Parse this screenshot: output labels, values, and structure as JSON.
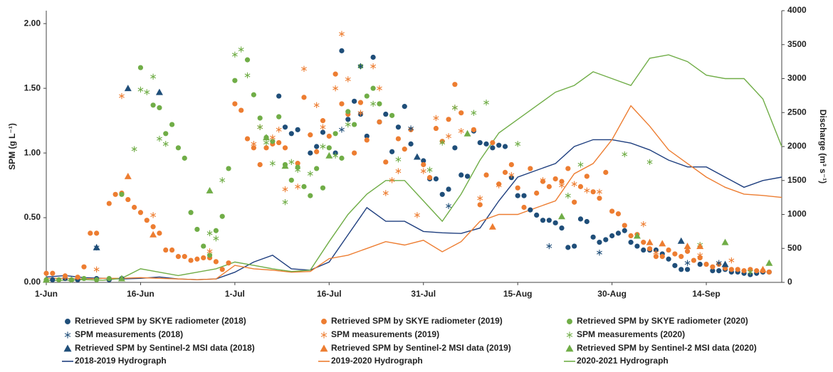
{
  "chart_data": {
    "type": "scatter",
    "ylabel": "SPM (g L⁻¹)",
    "y2label": "Discharge (m³ s⁻¹)",
    "xlim": [
      0,
      117
    ],
    "xticks": [
      {
        "value": 0,
        "label": "1-Jun"
      },
      {
        "value": 15,
        "label": "16-Jun"
      },
      {
        "value": 30,
        "label": "1-Jul"
      },
      {
        "value": 45,
        "label": "16-Jul"
      },
      {
        "value": 60,
        "label": "31-Jul"
      },
      {
        "value": 75,
        "label": "15-Aug"
      },
      {
        "value": 90,
        "label": "30-Aug"
      },
      {
        "value": 105,
        "label": "14-Sep"
      }
    ],
    "ylim": [
      0,
      2.1
    ],
    "yticks": [
      {
        "value": 0,
        "label": "0.00"
      },
      {
        "value": 0.5,
        "label": "0.50"
      },
      {
        "value": 1,
        "label": "1.00"
      },
      {
        "value": 1.5,
        "label": "1.50"
      },
      {
        "value": 2,
        "label": "2.00"
      }
    ],
    "y2lim": [
      0,
      4000
    ],
    "y2ticks": [
      0,
      500,
      1000,
      1500,
      2000,
      2500,
      3000,
      3500,
      4000
    ],
    "series": [
      {
        "name": "Retrieved SPM by SKYE radiometer (2018)",
        "type": "scatter",
        "marker": "circle",
        "color": "#1f4e79",
        "x": [
          1,
          3,
          5,
          8,
          10,
          12,
          37,
          38,
          39,
          40,
          42,
          43,
          44,
          46,
          47,
          48,
          49,
          50,
          51,
          52,
          53,
          54,
          55,
          56,
          57,
          58,
          60,
          61,
          62,
          63,
          64,
          65,
          66,
          67,
          68,
          69,
          70,
          71,
          72,
          73,
          74,
          75,
          76,
          77,
          78,
          79,
          80,
          81,
          82,
          83,
          84,
          85,
          86,
          87,
          88,
          89,
          90,
          91,
          92,
          93,
          94,
          95,
          96,
          97,
          98,
          99,
          100,
          101,
          102,
          104,
          106,
          107,
          108,
          109,
          110,
          111,
          112,
          113,
          114,
          115
        ],
        "values": [
          0.02,
          0.03,
          0.02,
          0.03,
          0.02,
          0.03,
          1.44,
          1.2,
          1.15,
          1.18,
          1,
          1.05,
          1.16,
          1,
          1.79,
          1.26,
          1.4,
          1.3,
          1.13,
          1.74,
          1.24,
          1.3,
          1.01,
          1.2,
          1.36,
          1.07,
          0.94,
          0.8,
          0.8,
          0.68,
          0.72,
          1.04,
          0.83,
          0.82,
          1.17,
          1.08,
          1.07,
          1.04,
          1.06,
          1.05,
          0.81,
          0.67,
          0.67,
          0.56,
          0.52,
          0.48,
          0.48,
          0.46,
          0.42,
          0.27,
          0.28,
          0.49,
          0.47,
          0.35,
          0.31,
          0.33,
          0.36,
          0.38,
          0.4,
          0.31,
          0.28,
          0.25,
          0.25,
          0.25,
          0.22,
          0.18,
          0.13,
          0.1,
          0.1,
          0.14,
          0.09,
          0.09,
          0.1,
          0.08,
          0.08,
          0.07,
          0.06,
          0.07,
          0.08,
          0.08
        ]
      },
      {
        "name": "Retrieved SPM by SKYE radiometer (2019)",
        "type": "scatter",
        "marker": "circle",
        "color": "#ed7d31",
        "x": [
          0,
          1,
          3,
          5,
          6,
          7,
          8,
          10,
          11,
          12,
          13,
          14,
          15,
          16,
          17,
          18,
          19,
          20,
          21,
          22,
          23,
          24,
          25,
          26,
          27,
          28,
          29,
          30,
          31,
          32,
          33,
          34,
          35,
          36,
          37,
          38,
          40,
          41,
          42,
          43,
          44,
          45,
          46,
          47,
          48,
          49,
          50,
          51,
          53,
          54,
          56,
          57,
          58,
          60,
          61,
          62,
          63,
          64,
          65,
          66,
          68,
          69,
          70,
          71,
          72,
          73,
          74,
          75,
          76,
          77,
          78,
          79,
          80,
          81,
          82,
          83,
          84,
          85,
          86,
          87,
          88,
          89,
          90,
          91,
          92,
          93,
          94,
          95,
          96,
          97,
          98,
          99,
          100,
          101,
          102,
          103,
          104,
          105,
          106,
          107,
          108,
          109,
          110,
          111,
          112,
          113,
          114,
          115
        ],
        "values": [
          0.07,
          0.07,
          0.05,
          0.04,
          0.12,
          0.38,
          0.38,
          0.61,
          0.68,
          0.69,
          0.64,
          0.58,
          0.54,
          0.48,
          0.43,
          0.38,
          0.25,
          0.25,
          0.2,
          0.2,
          0.17,
          0.18,
          0.19,
          0.19,
          0.16,
          0.1,
          0.15,
          1.38,
          1.33,
          1.11,
          1.04,
          0.91,
          1.04,
          1.07,
          1.08,
          1.04,
          0.92,
          1.43,
          1.14,
          1.01,
          1.25,
          1.13,
          1.61,
          1.38,
          1.3,
          1,
          1.39,
          1.1,
          1.24,
          0.93,
          1.11,
          1.03,
          1.18,
          0.91,
          0.81,
          1.19,
          1.09,
          1.26,
          1.53,
          1.31,
          1.18,
          0.6,
          0.83,
          1.08,
          0.76,
          0.85,
          0.91,
          0.73,
          0.58,
          0.88,
          0.69,
          0.78,
          0.74,
          0.8,
          0.78,
          0.88,
          0.62,
          0.74,
          0.82,
          0.7,
          0.65,
          0.85,
          0.55,
          0.53,
          0.44,
          0.36,
          0.37,
          0.31,
          0.26,
          0.2,
          0.2,
          0.25,
          0.22,
          0.2,
          0.24,
          0.17,
          0.19,
          0.14,
          0.12,
          0.14,
          0.11,
          0.1,
          0.1,
          0.09,
          0.1,
          0.09,
          0.09,
          0.08
        ]
      },
      {
        "name": "Retrieved SPM by SKYE radiometer (2020)",
        "type": "scatter",
        "marker": "circle",
        "color": "#70ad47",
        "x": [
          0,
          2,
          4,
          6,
          8,
          10,
          12,
          15,
          17,
          18,
          19,
          20,
          21,
          22,
          23,
          24,
          25,
          26,
          27,
          28,
          29,
          30,
          32,
          33,
          34,
          35,
          36,
          37,
          38,
          39,
          40,
          41,
          42,
          43,
          44,
          45,
          46,
          47,
          48,
          49,
          50,
          51,
          52,
          53,
          55
        ],
        "values": [
          0.02,
          0.02,
          0.02,
          0.03,
          0.02,
          0.03,
          0.68,
          1.66,
          1.37,
          1.35,
          1.15,
          1.22,
          1.04,
          0.96,
          0.54,
          0.41,
          0.28,
          0.21,
          0.4,
          0.51,
          0.88,
          1.56,
          1.72,
          1.45,
          1.27,
          1.12,
          1.09,
          1.28,
          0.91,
          0.79,
          0.89,
          0.74,
          0.67,
          0.88,
          0.73,
          1.04,
          1.15,
          0.96,
          1.32,
          1.22,
          1.67,
          1.44,
          1.5,
          1.38,
          1.29
        ]
      },
      {
        "name": "SPM measurements (2018)",
        "type": "scatter",
        "marker": "star",
        "color": "#1f4e79",
        "x": [
          8,
          47,
          50,
          58,
          64,
          80,
          88,
          102,
          107
        ],
        "values": [
          0.27,
          1.18,
          1.67,
          1.19,
          0.59,
          0.28,
          0.23,
          0.15,
          0.15
        ]
      },
      {
        "name": "SPM measurements (2019)",
        "type": "scatter",
        "marker": "star",
        "color": "#ed7d31",
        "x": [
          3,
          8,
          12,
          17,
          26,
          33,
          34,
          36,
          37,
          38,
          40,
          41,
          43,
          44,
          46,
          47,
          48,
          50,
          52,
          53,
          54,
          55,
          56,
          59,
          60,
          62,
          64,
          65,
          66,
          69,
          72,
          74,
          79,
          82,
          84,
          86,
          88,
          95,
          97,
          104,
          109
        ],
        "values": [
          0.04,
          0.1,
          1.44,
          0.52,
          0.24,
          1.07,
          1.2,
          1.12,
          1.18,
          0.72,
          0.74,
          1.65,
          1.37,
          1.2,
          1.5,
          1.92,
          1.57,
          1.31,
          1.67,
          1.5,
          0.69,
          0.79,
          0.86,
          0.52,
          0.86,
          1.27,
          1.13,
          1.35,
          1.17,
          0.65,
          0.75,
          0.83,
          0.79,
          0.75,
          0.76,
          0.71,
          0.7,
          0.45,
          0.23,
          0.21,
          0.17
        ]
      },
      {
        "name": "SPM measurements (2020)",
        "type": "scatter",
        "marker": "star",
        "color": "#70ad47",
        "x": [
          4,
          14,
          15,
          16,
          17,
          18,
          19,
          26,
          27,
          28,
          30,
          31,
          32,
          34,
          35,
          36,
          38,
          39,
          40,
          42,
          44,
          46,
          48,
          52,
          56,
          61,
          63,
          65,
          68,
          70,
          75,
          83,
          85,
          92,
          96,
          104,
          112
        ],
        "values": [
          0.02,
          1.03,
          1.49,
          1.47,
          1.59,
          1.11,
          1.07,
          0.38,
          0.34,
          0.79,
          1.76,
          1.8,
          1.6,
          1.2,
          1.08,
          0.92,
          0.62,
          0.93,
          0.87,
          0.84,
          1.05,
          0.98,
          1.22,
          1.38,
          0.95,
          0.87,
          1.08,
          1.35,
          1.31,
          1.39,
          1.07,
          0.67,
          0.91,
          0.99,
          0.93,
          0.29,
          0.08
        ]
      },
      {
        "name": "Retrieved SPM by Sentinel-2 MSI data (2018)",
        "type": "scatter",
        "marker": "triangle",
        "color": "#1f4e79",
        "x": [
          8,
          13,
          18,
          59,
          101,
          108
        ],
        "values": [
          0.27,
          1.5,
          1.47,
          0.97,
          0.32,
          0.14
        ]
      },
      {
        "name": "Retrieved SPM by Sentinel-2 MSI data (2019)",
        "type": "scatter",
        "marker": "triangle",
        "color": "#ed7d31",
        "x": [
          13,
          17,
          71,
          96,
          98,
          102,
          104,
          114
        ],
        "values": [
          0.82,
          0.37,
          0.43,
          0.31,
          0.3,
          0.28,
          0.28,
          0.1
        ]
      },
      {
        "name": "Retrieved SPM by Sentinel-2 MSI data (2020)",
        "type": "scatter",
        "marker": "triangle",
        "color": "#70ad47",
        "x": [
          0,
          12,
          26,
          35,
          38,
          45,
          67,
          82,
          94,
          108,
          115
        ],
        "values": [
          0.02,
          0.03,
          0.71,
          1.12,
          0.9,
          0.98,
          1.15,
          0.51,
          0.36,
          0.31,
          0.15
        ]
      },
      {
        "name": "2018-2019 Hydrograph",
        "type": "line",
        "axis": "y2",
        "color": "#1f3f7f",
        "x": [
          0,
          3,
          6,
          9,
          12,
          15,
          18,
          21,
          24,
          27,
          30,
          33,
          36,
          39,
          42,
          45,
          48,
          51,
          54,
          57,
          60,
          63,
          66,
          69,
          72,
          75,
          78,
          81,
          84,
          87,
          90,
          93,
          96,
          99,
          102,
          105,
          108,
          111,
          114,
          117
        ],
        "values": [
          80,
          100,
          70,
          60,
          50,
          60,
          80,
          50,
          40,
          50,
          150,
          300,
          400,
          200,
          180,
          300,
          700,
          1100,
          900,
          900,
          750,
          730,
          720,
          800,
          1200,
          1550,
          1650,
          1750,
          2000,
          2100,
          2100,
          2050,
          1950,
          1800,
          1700,
          1700,
          1550,
          1400,
          1500,
          1550
        ]
      },
      {
        "name": "2019-2020 Hydrograph",
        "type": "line",
        "axis": "y2",
        "color": "#ed7d31",
        "x": [
          0,
          3,
          6,
          9,
          12,
          15,
          18,
          21,
          24,
          27,
          30,
          33,
          36,
          39,
          42,
          45,
          48,
          51,
          54,
          57,
          60,
          63,
          66,
          69,
          72,
          75,
          78,
          81,
          84,
          87,
          90,
          93,
          96,
          99,
          102,
          105,
          108,
          111,
          114,
          117
        ],
        "values": [
          60,
          60,
          50,
          60,
          60,
          70,
          60,
          50,
          40,
          50,
          250,
          200,
          180,
          150,
          160,
          350,
          400,
          500,
          600,
          550,
          620,
          450,
          600,
          900,
          1000,
          1000,
          1100,
          1200,
          1600,
          1750,
          2100,
          2600,
          2300,
          1950,
          1750,
          1550,
          1400,
          1300,
          1280,
          1250
        ]
      },
      {
        "name": "2020-2021 Hydrograph",
        "type": "line",
        "axis": "y2",
        "color": "#70ad47",
        "x": [
          0,
          3,
          6,
          9,
          12,
          15,
          18,
          21,
          24,
          27,
          30,
          33,
          36,
          39,
          42,
          45,
          48,
          51,
          54,
          57,
          60,
          63,
          66,
          69,
          72,
          75,
          78,
          81,
          84,
          87,
          90,
          93,
          96,
          99,
          102,
          105,
          108,
          111,
          114,
          117
        ],
        "values": [
          30,
          30,
          40,
          30,
          60,
          200,
          150,
          100,
          150,
          200,
          300,
          250,
          200,
          160,
          180,
          600,
          1000,
          1300,
          1500,
          1500,
          1200,
          900,
          1300,
          1800,
          2200,
          2400,
          2600,
          2800,
          2900,
          3100,
          3000,
          2900,
          3300,
          3350,
          3250,
          3050,
          3000,
          3000,
          2700,
          2000
        ]
      }
    ]
  }
}
